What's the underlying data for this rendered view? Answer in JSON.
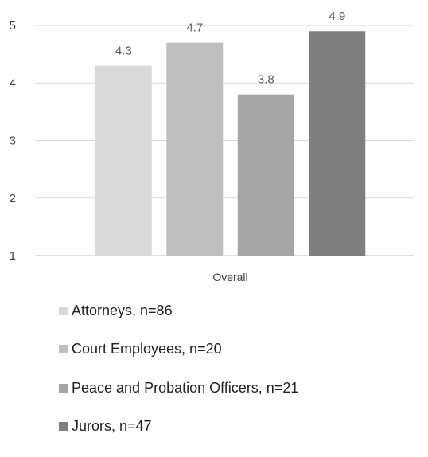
{
  "chart_data": {
    "type": "bar",
    "categories": [
      "Overall"
    ],
    "series": [
      {
        "name": "Attorneys, n=86",
        "values": [
          4.3
        ],
        "color": "#d9d9d9"
      },
      {
        "name": "Court Employees, n=20",
        "values": [
          4.7
        ],
        "color": "#bfbfbf"
      },
      {
        "name": "Peace and Probation Officers, n=21",
        "values": [
          3.8
        ],
        "color": "#a5a5a5"
      },
      {
        "name": "Jurors, n=47",
        "values": [
          4.9
        ],
        "color": "#7f7f7f"
      }
    ],
    "ylim": [
      1,
      5
    ],
    "yticks": [
      "1",
      "2",
      "3",
      "4",
      "5"
    ],
    "grid": true,
    "legend": "bottom",
    "data_labels": [
      "4.3",
      "4.7",
      "3.8",
      "4.9"
    ]
  }
}
